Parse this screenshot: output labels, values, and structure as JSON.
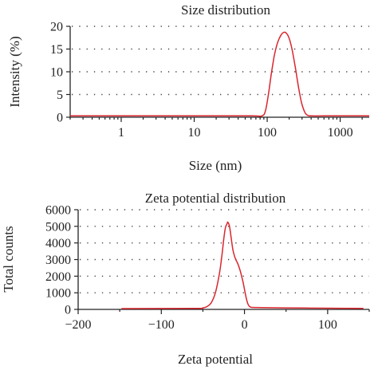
{
  "chart_data": [
    {
      "type": "line",
      "title": "Size distribution",
      "xlabel": "Size (nm)",
      "ylabel": "Intensity (%)",
      "xscale": "log",
      "xlim": [
        0.2,
        2500
      ],
      "ylim": [
        0,
        20
      ],
      "xticks": [
        1,
        10,
        100,
        1000
      ],
      "xtick_labels": [
        "1",
        "10",
        "100",
        "1000"
      ],
      "yticks": [
        0,
        5,
        10,
        15,
        20
      ],
      "ytick_labels": [
        "0",
        "5",
        "10",
        "15",
        "20"
      ],
      "grid": "horizontal dotted",
      "color": "#d9262e",
      "x": [
        0.2,
        10,
        60,
        85,
        95,
        105,
        115,
        125,
        135,
        145,
        155,
        165,
        175,
        185,
        195,
        205,
        220,
        240,
        260,
        280,
        300,
        330,
        360,
        400,
        600,
        1000,
        2500
      ],
      "y": [
        0.3,
        0.3,
        0.3,
        0.3,
        1.5,
        5.5,
        10.0,
        13.5,
        15.8,
        17.2,
        18.1,
        18.6,
        18.7,
        18.4,
        17.8,
        16.8,
        14.8,
        11.5,
        8.0,
        5.0,
        2.8,
        1.0,
        0.4,
        0.3,
        0.3,
        0.3,
        0.3
      ]
    },
    {
      "type": "line",
      "title": "Zeta potential distribution",
      "xlabel": "Zeta potential",
      "ylabel": "Total counts",
      "xlim": [
        -200,
        150
      ],
      "ylim": [
        0,
        6000
      ],
      "xticks": [
        -200,
        -100,
        0,
        100
      ],
      "xtick_labels": [
        "−200",
        "−100",
        "0",
        "100"
      ],
      "yticks": [
        0,
        1000,
        2000,
        3000,
        4000,
        5000,
        6000
      ],
      "ytick_labels": [
        "0",
        "1000",
        "2000",
        "3000",
        "4000",
        "5000",
        "6000"
      ],
      "grid": "horizontal dotted",
      "color": "#d9262e",
      "x": [
        -148,
        -60,
        -50,
        -45,
        -40,
        -35,
        -30,
        -27,
        -25,
        -23,
        -21,
        -20,
        -18,
        -16,
        -14,
        -12,
        -10,
        -8,
        -5,
        -2,
        0,
        2,
        4,
        6,
        8,
        10,
        20,
        50,
        100,
        143
      ],
      "y": [
        50,
        60,
        90,
        170,
        400,
        1000,
        2200,
        3300,
        4200,
        4900,
        5150,
        5250,
        5000,
        4300,
        3600,
        3200,
        2950,
        2750,
        2300,
        1700,
        1200,
        700,
        350,
        180,
        130,
        120,
        110,
        90,
        70,
        60
      ]
    }
  ]
}
